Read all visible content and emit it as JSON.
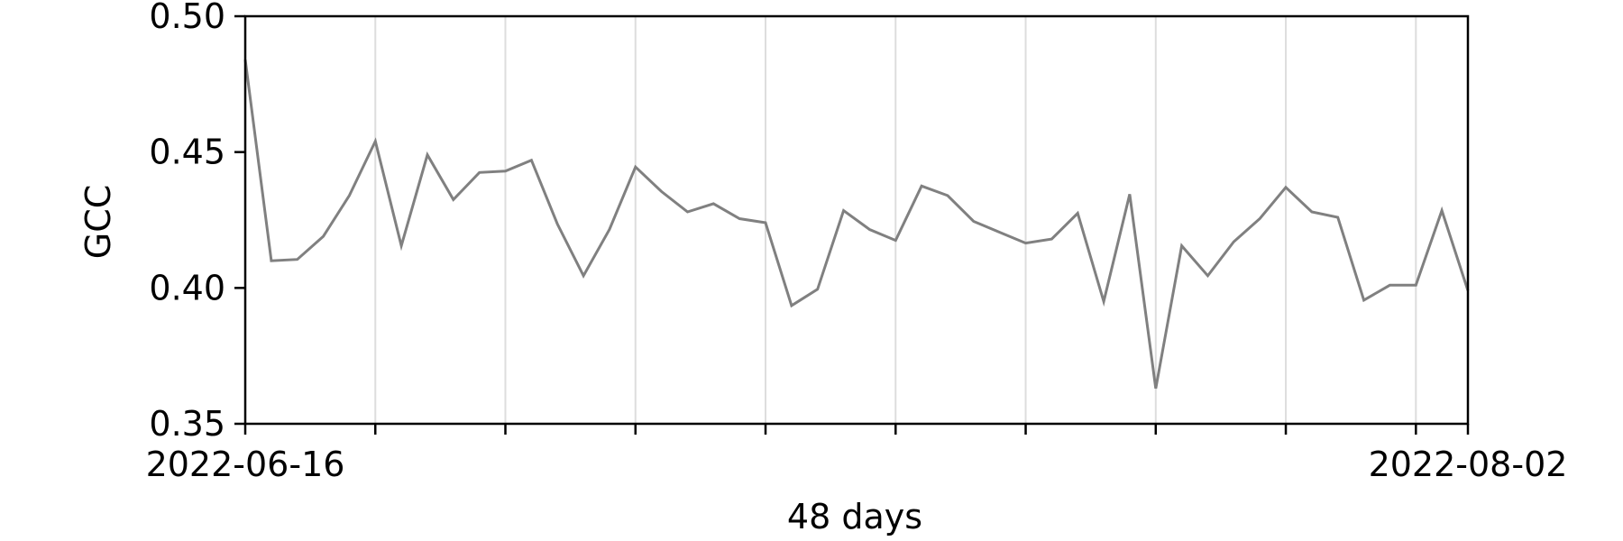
{
  "chart_data": {
    "type": "line",
    "xlabel": "48 days",
    "ylabel": "GCC",
    "xlim": [
      "2022-06-16",
      "2022-08-02"
    ],
    "ylim": [
      0.35,
      0.5
    ],
    "yticks": [
      "0.35",
      "0.40",
      "0.45",
      "0.50"
    ],
    "xtick_labels": [
      {
        "date": "2022-06-16",
        "label": "2022-06-16"
      },
      {
        "date": "2022-08-02",
        "label": "2022-08-02"
      }
    ],
    "xtick_marks": [
      "2022-06-16",
      "2022-06-21",
      "2022-06-26",
      "2022-07-01",
      "2022-07-06",
      "2022-07-11",
      "2022-07-16",
      "2022-07-21",
      "2022-07-26",
      "2022-07-31",
      "2022-08-02"
    ],
    "grid": {
      "x": true,
      "y": false
    },
    "colors": {
      "line": "#808080",
      "grid": "#dddddd",
      "axis": "#000000"
    },
    "series": [
      {
        "x": [
          "2022-06-16",
          "2022-06-17",
          "2022-06-18",
          "2022-06-19",
          "2022-06-20",
          "2022-06-21",
          "2022-06-22",
          "2022-06-23",
          "2022-06-24",
          "2022-06-25",
          "2022-06-26",
          "2022-06-27",
          "2022-06-28",
          "2022-06-29",
          "2022-06-30",
          "2022-07-01",
          "2022-07-02",
          "2022-07-03",
          "2022-07-04",
          "2022-07-05",
          "2022-07-06",
          "2022-07-07",
          "2022-07-08",
          "2022-07-09",
          "2022-07-10",
          "2022-07-11",
          "2022-07-12",
          "2022-07-13",
          "2022-07-14",
          "2022-07-15",
          "2022-07-16",
          "2022-07-17",
          "2022-07-18",
          "2022-07-19",
          "2022-07-20",
          "2022-07-21",
          "2022-07-22",
          "2022-07-23",
          "2022-07-24",
          "2022-07-25",
          "2022-07-26",
          "2022-07-27",
          "2022-07-28",
          "2022-07-29",
          "2022-07-30",
          "2022-07-31",
          "2022-08-01",
          "2022-08-02"
        ],
        "values": [
          0.484,
          0.41,
          0.4105,
          0.419,
          0.434,
          0.454,
          0.4155,
          0.449,
          0.4325,
          0.4425,
          0.443,
          0.447,
          0.4235,
          0.4045,
          0.4215,
          0.4445,
          0.4355,
          0.428,
          0.431,
          0.4255,
          0.424,
          0.3935,
          0.3995,
          0.4285,
          0.4215,
          0.4175,
          0.4375,
          0.434,
          0.4245,
          0.4205,
          0.4165,
          0.418,
          0.4275,
          0.395,
          0.4345,
          0.363,
          0.4155,
          0.4045,
          0.417,
          0.4255,
          0.437,
          0.428,
          0.426,
          0.3955,
          0.401,
          0.401,
          0.4285,
          0.399
        ]
      }
    ]
  }
}
